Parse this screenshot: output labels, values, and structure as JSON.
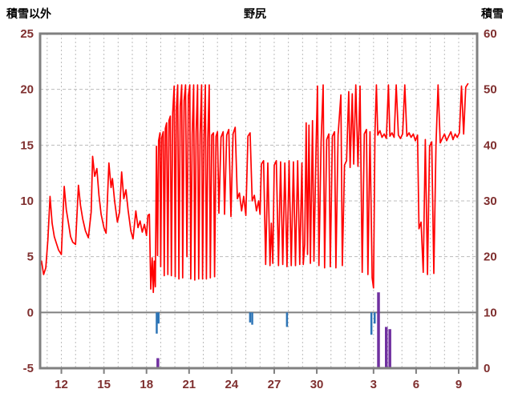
{
  "chart_data": {
    "type": "line",
    "title": "野尻",
    "left_axis": {
      "label": "積雪以外",
      "ticks": [
        25,
        20,
        15,
        10,
        5,
        0,
        -5
      ],
      "range": [
        -5,
        25
      ]
    },
    "right_axis": {
      "label": "積雪",
      "ticks": [
        60,
        50,
        40,
        30,
        20,
        10,
        0
      ],
      "range": [
        0,
        60
      ]
    },
    "x_axis": {
      "tick_positions": [
        12,
        15,
        18,
        21,
        24,
        27,
        30,
        34,
        37,
        40
      ],
      "tick_labels": [
        "12",
        "15",
        "18",
        "21",
        "24",
        "27",
        "30",
        "3",
        "6",
        "9"
      ],
      "range": [
        10.5,
        41.3
      ],
      "grid_day_start": 11,
      "grid_day_end": 41
    },
    "colors": {
      "line": "#ff0000",
      "precip_bars": "#2e75b6",
      "snow": "#7030a0",
      "frame": "#808080",
      "zero_line": "#808080",
      "grid": "#bcbcbc",
      "tick_text": "#7f2f2f"
    },
    "grid": true,
    "legend": "none",
    "series": [
      {
        "name": "temperature",
        "axis": "left",
        "type": "line",
        "color": "#ff0000",
        "points": [
          [
            10.6,
            4.6
          ],
          [
            10.75,
            3.4
          ],
          [
            10.9,
            4.0
          ],
          [
            11.05,
            6.5
          ],
          [
            11.2,
            10.4
          ],
          [
            11.35,
            8.0
          ],
          [
            11.5,
            6.8
          ],
          [
            11.65,
            6.2
          ],
          [
            11.8,
            5.6
          ],
          [
            12.0,
            5.2
          ],
          [
            12.2,
            11.3
          ],
          [
            12.35,
            9.2
          ],
          [
            12.5,
            8.0
          ],
          [
            12.65,
            6.8
          ],
          [
            12.8,
            6.3
          ],
          [
            13.0,
            6.1
          ],
          [
            13.2,
            11.4
          ],
          [
            13.35,
            9.6
          ],
          [
            13.5,
            8.4
          ],
          [
            13.7,
            7.3
          ],
          [
            13.9,
            6.7
          ],
          [
            14.1,
            9.0
          ],
          [
            14.2,
            14.0
          ],
          [
            14.35,
            12.2
          ],
          [
            14.5,
            12.9
          ],
          [
            14.65,
            10.5
          ],
          [
            14.8,
            8.8
          ],
          [
            15.0,
            7.6
          ],
          [
            15.15,
            7.1
          ],
          [
            15.35,
            13.4
          ],
          [
            15.5,
            11.2
          ],
          [
            15.6,
            12.0
          ],
          [
            15.75,
            10.0
          ],
          [
            15.95,
            8.1
          ],
          [
            16.1,
            9.0
          ],
          [
            16.25,
            12.6
          ],
          [
            16.4,
            10.2
          ],
          [
            16.55,
            11.0
          ],
          [
            16.7,
            9.2
          ],
          [
            16.9,
            7.3
          ],
          [
            17.05,
            6.6
          ],
          [
            17.25,
            9.1
          ],
          [
            17.4,
            7.6
          ],
          [
            17.55,
            8.2
          ],
          [
            17.7,
            7.2
          ],
          [
            17.85,
            7.9
          ],
          [
            18.0,
            6.9
          ],
          [
            18.1,
            8.7
          ],
          [
            18.2,
            8.8
          ],
          [
            18.3,
            2.1
          ],
          [
            18.4,
            4.9
          ],
          [
            18.48,
            1.8
          ],
          [
            18.55,
            4.6
          ],
          [
            18.62,
            2.3
          ],
          [
            18.7,
            14.9
          ],
          [
            18.78,
            5.1
          ],
          [
            18.85,
            15.4
          ],
          [
            18.95,
            16.1
          ],
          [
            19.0,
            4.1
          ],
          [
            19.08,
            15.7
          ],
          [
            19.18,
            16.2
          ],
          [
            19.25,
            3.3
          ],
          [
            19.33,
            16.5
          ],
          [
            19.42,
            17.0
          ],
          [
            19.5,
            3.4
          ],
          [
            19.58,
            17.2
          ],
          [
            19.68,
            17.6
          ],
          [
            19.75,
            3.3
          ],
          [
            19.85,
            17.9
          ],
          [
            19.95,
            20.3
          ],
          [
            20.02,
            3.2
          ],
          [
            20.1,
            18.1
          ],
          [
            20.2,
            20.4
          ],
          [
            20.28,
            3.0
          ],
          [
            20.38,
            18.5
          ],
          [
            20.48,
            20.4
          ],
          [
            20.55,
            3.1
          ],
          [
            20.65,
            19.0
          ],
          [
            20.75,
            20.4
          ],
          [
            20.85,
            5.0
          ],
          [
            20.95,
            19.4
          ],
          [
            21.05,
            20.4
          ],
          [
            21.12,
            3.0
          ],
          [
            21.22,
            16.0
          ],
          [
            21.32,
            20.4
          ],
          [
            21.4,
            2.9
          ],
          [
            21.5,
            16.2
          ],
          [
            21.6,
            20.4
          ],
          [
            21.68,
            3.0
          ],
          [
            21.78,
            16.0
          ],
          [
            21.88,
            20.4
          ],
          [
            21.95,
            3.0
          ],
          [
            22.05,
            15.8
          ],
          [
            22.15,
            20.4
          ],
          [
            22.22,
            3.0
          ],
          [
            22.32,
            15.6
          ],
          [
            22.42,
            20.4
          ],
          [
            22.5,
            3.1
          ],
          [
            22.6,
            15.9
          ],
          [
            22.72,
            16.1
          ],
          [
            22.8,
            3.2
          ],
          [
            22.9,
            15.8
          ],
          [
            23.0,
            16.2
          ],
          [
            23.1,
            8.9
          ],
          [
            23.25,
            15.7
          ],
          [
            23.4,
            16.2
          ],
          [
            23.5,
            8.8
          ],
          [
            23.65,
            15.9
          ],
          [
            23.8,
            16.4
          ],
          [
            23.95,
            8.6
          ],
          [
            24.1,
            16.0
          ],
          [
            24.25,
            16.6
          ],
          [
            24.4,
            10.2
          ],
          [
            24.55,
            10.7
          ],
          [
            24.7,
            9.1
          ],
          [
            24.85,
            10.4
          ],
          [
            25.0,
            8.7
          ],
          [
            25.15,
            15.8
          ],
          [
            25.3,
            16.1
          ],
          [
            25.45,
            10.0
          ],
          [
            25.6,
            10.5
          ],
          [
            25.75,
            9.1
          ],
          [
            25.9,
            10.0
          ],
          [
            26.0,
            8.8
          ],
          [
            26.1,
            13.3
          ],
          [
            26.25,
            13.6
          ],
          [
            26.4,
            4.3
          ],
          [
            26.55,
            13.4
          ],
          [
            26.7,
            4.2
          ],
          [
            26.8,
            8.0
          ],
          [
            26.9,
            4.4
          ],
          [
            27.0,
            13.2
          ],
          [
            27.15,
            13.6
          ],
          [
            27.3,
            4.2
          ],
          [
            27.45,
            13.5
          ],
          [
            27.6,
            4.3
          ],
          [
            27.75,
            13.4
          ],
          [
            27.9,
            4.1
          ],
          [
            28.05,
            13.6
          ],
          [
            28.2,
            4.2
          ],
          [
            28.35,
            13.5
          ],
          [
            28.5,
            4.2
          ],
          [
            28.65,
            13.6
          ],
          [
            28.8,
            4.3
          ],
          [
            28.95,
            13.4
          ],
          [
            29.05,
            4.3
          ],
          [
            29.15,
            6.1
          ],
          [
            29.25,
            17.0
          ],
          [
            29.35,
            5.2
          ],
          [
            29.45,
            16.8
          ],
          [
            29.55,
            4.4
          ],
          [
            29.7,
            17.2
          ],
          [
            29.8,
            4.6
          ],
          [
            29.95,
            15.0
          ],
          [
            30.05,
            20.3
          ],
          [
            30.15,
            4.2
          ],
          [
            30.3,
            15.2
          ],
          [
            30.45,
            20.4
          ],
          [
            30.55,
            4.0
          ],
          [
            30.7,
            15.5
          ],
          [
            30.85,
            16.0
          ],
          [
            30.95,
            4.1
          ],
          [
            31.1,
            15.8
          ],
          [
            31.25,
            16.2
          ],
          [
            31.35,
            4.0
          ],
          [
            31.5,
            15.9
          ],
          [
            31.7,
            19.5
          ],
          [
            31.8,
            4.2
          ],
          [
            31.95,
            13.2
          ],
          [
            32.1,
            13.6
          ],
          [
            32.25,
            19.8
          ],
          [
            32.35,
            13.0
          ],
          [
            32.5,
            19.6
          ],
          [
            32.6,
            13.3
          ],
          [
            32.75,
            20.4
          ],
          [
            32.9,
            13.1
          ],
          [
            33.05,
            20.3
          ],
          [
            33.2,
            3.6
          ],
          [
            33.35,
            16.0
          ],
          [
            33.5,
            16.4
          ],
          [
            33.6,
            3.4
          ],
          [
            33.75,
            16.2
          ],
          [
            33.9,
            3.1
          ],
          [
            34.0,
            2.2
          ],
          [
            34.1,
            16.1
          ],
          [
            34.2,
            20.4
          ],
          [
            34.3,
            15.9
          ],
          [
            34.45,
            16.3
          ],
          [
            34.6,
            15.7
          ],
          [
            34.75,
            16.0
          ],
          [
            34.9,
            15.6
          ],
          [
            35.05,
            20.4
          ],
          [
            35.15,
            15.8
          ],
          [
            35.3,
            16.1
          ],
          [
            35.45,
            15.7
          ],
          [
            35.6,
            20.4
          ],
          [
            35.75,
            15.9
          ],
          [
            35.9,
            15.6
          ],
          [
            36.05,
            16.0
          ],
          [
            36.2,
            20.4
          ],
          [
            36.35,
            15.8
          ],
          [
            36.5,
            16.1
          ],
          [
            36.65,
            15.7
          ],
          [
            36.8,
            16.0
          ],
          [
            36.95,
            15.4
          ],
          [
            37.1,
            15.9
          ],
          [
            37.2,
            7.5
          ],
          [
            37.35,
            8.1
          ],
          [
            37.5,
            3.6
          ],
          [
            37.65,
            15.5
          ],
          [
            37.8,
            3.4
          ],
          [
            37.95,
            14.9
          ],
          [
            38.1,
            15.3
          ],
          [
            38.25,
            3.5
          ],
          [
            38.4,
            15.0
          ],
          [
            38.55,
            20.4
          ],
          [
            38.7,
            15.2
          ],
          [
            38.85,
            15.6
          ],
          [
            39.0,
            16.0
          ],
          [
            39.15,
            15.4
          ],
          [
            39.3,
            15.8
          ],
          [
            39.45,
            16.2
          ],
          [
            39.6,
            15.5
          ],
          [
            39.75,
            16.0
          ],
          [
            39.9,
            15.7
          ],
          [
            40.05,
            16.1
          ],
          [
            40.2,
            20.3
          ],
          [
            40.35,
            16.0
          ],
          [
            40.5,
            20.2
          ],
          [
            40.65,
            20.5
          ]
        ]
      },
      {
        "name": "precipitation",
        "axis": "left",
        "type": "bars-down-from-zero",
        "color": "#2e75b6",
        "points": [
          [
            18.72,
            -1.9
          ],
          [
            18.85,
            -1.0
          ],
          [
            25.3,
            -0.9
          ],
          [
            25.45,
            -1.1
          ],
          [
            27.9,
            -1.3
          ],
          [
            33.85,
            -2.0
          ],
          [
            34.08,
            -1.0
          ]
        ]
      },
      {
        "name": "snow-depth",
        "axis": "right",
        "type": "bars-up-from-zero",
        "color": "#7030a0",
        "baseline_value": 0,
        "points": [
          [
            18.8,
            1.8
          ],
          [
            34.35,
            13.6
          ],
          [
            34.9,
            7.4
          ],
          [
            35.15,
            7.0
          ]
        ]
      }
    ]
  }
}
